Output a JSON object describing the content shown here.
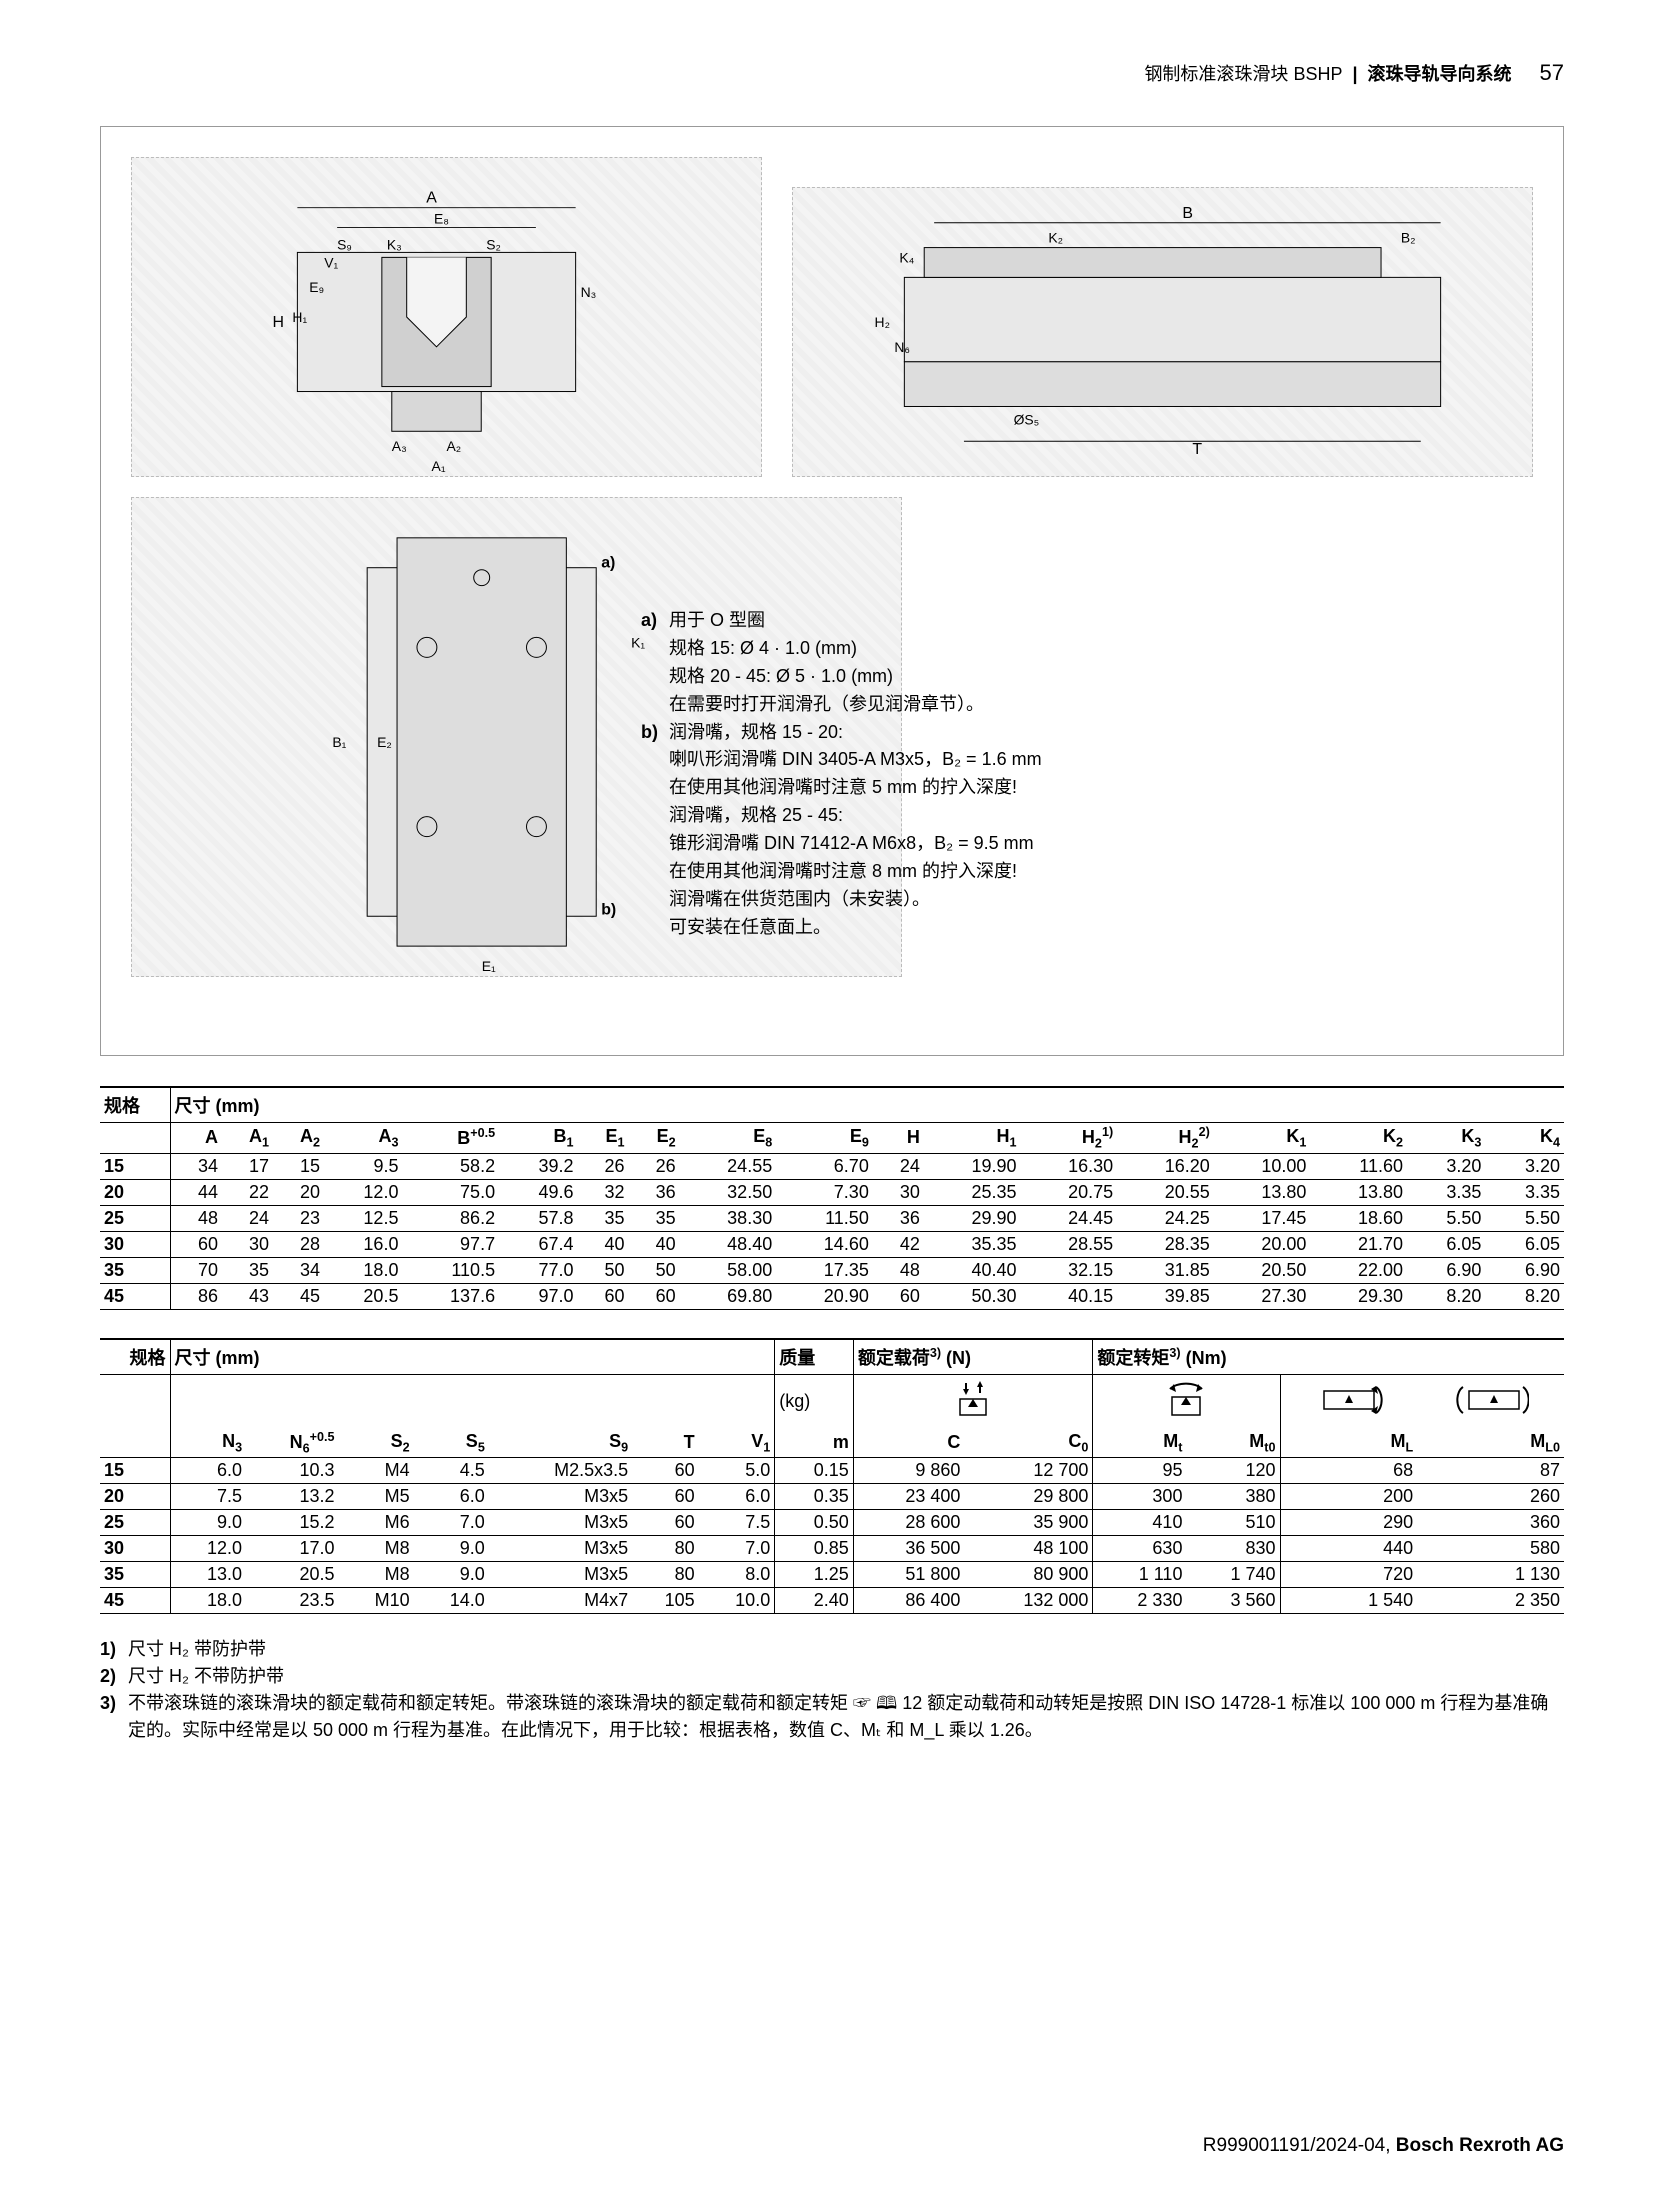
{
  "header": {
    "left": "钢制标准滚珠滑块 BSHP",
    "right": "滚珠导轨导向系统",
    "page": "57"
  },
  "diagramLabels": {
    "topLeft": [
      "A",
      "E8",
      "S9",
      "S2",
      "V1",
      "K3",
      "E9",
      "N3",
      "H",
      "H1",
      "A3",
      "A2",
      "A1"
    ],
    "topRight": [
      "B",
      "K2",
      "B2",
      "K4",
      "H2",
      "N6",
      "ØS5",
      "T"
    ],
    "botLeft": [
      "a)",
      "K1",
      "B1",
      "E2",
      "b)",
      "E1"
    ]
  },
  "notes": {
    "a_label": "a)",
    "a_lines": [
      "用于 O 型圈",
      "规格 15:  Ø 4 · 1.0 (mm)",
      "规格 20 - 45:  Ø 5 · 1.0 (mm)",
      "在需要时打开润滑孔（参见润滑章节）。"
    ],
    "b_label": "b)",
    "b_lines": [
      "润滑嘴，规格 15 - 20:",
      "喇叭形润滑嘴 DIN 3405-A M3x5，B₂ = 1.6 mm",
      "在使用其他润滑嘴时注意 5 mm 的拧入深度!",
      "润滑嘴，规格 25 - 45:",
      "锥形润滑嘴 DIN 71412-A M6x8，B₂ = 9.5 mm",
      "在使用其他润滑嘴时注意 8 mm 的拧入深度!",
      "润滑嘴在供货范围内（未安装）。",
      "可安装在任意面上。"
    ]
  },
  "table1": {
    "title_left": "规格",
    "title_right": "尺寸 (mm)",
    "columns": [
      "A",
      "A₁",
      "A₂",
      "A₃",
      "B⁺⁰·⁵",
      "B₁",
      "E₁",
      "E₂",
      "E₈",
      "E₉",
      "H",
      "H₁",
      "H₂¹⁾",
      "H₂²⁾",
      "K₁",
      "K₂",
      "K₃",
      "K₄"
    ],
    "rows": [
      [
        "15",
        "34",
        "17",
        "15",
        "9.5",
        "58.2",
        "39.2",
        "26",
        "26",
        "24.55",
        "6.70",
        "24",
        "19.90",
        "16.30",
        "16.20",
        "10.00",
        "11.60",
        "3.20",
        "3.20"
      ],
      [
        "20",
        "44",
        "22",
        "20",
        "12.0",
        "75.0",
        "49.6",
        "32",
        "36",
        "32.50",
        "7.30",
        "30",
        "25.35",
        "20.75",
        "20.55",
        "13.80",
        "13.80",
        "3.35",
        "3.35"
      ],
      [
        "25",
        "48",
        "24",
        "23",
        "12.5",
        "86.2",
        "57.8",
        "35",
        "35",
        "38.30",
        "11.50",
        "36",
        "29.90",
        "24.45",
        "24.25",
        "17.45",
        "18.60",
        "5.50",
        "5.50"
      ],
      [
        "30",
        "60",
        "30",
        "28",
        "16.0",
        "97.7",
        "67.4",
        "40",
        "40",
        "48.40",
        "14.60",
        "42",
        "35.35",
        "28.55",
        "28.35",
        "20.00",
        "21.70",
        "6.05",
        "6.05"
      ],
      [
        "35",
        "70",
        "35",
        "34",
        "18.0",
        "110.5",
        "77.0",
        "50",
        "50",
        "58.00",
        "17.35",
        "48",
        "40.40",
        "32.15",
        "31.85",
        "20.50",
        "22.00",
        "6.90",
        "6.90"
      ],
      [
        "45",
        "86",
        "43",
        "45",
        "20.5",
        "137.6",
        "97.0",
        "60",
        "60",
        "69.80",
        "20.90",
        "60",
        "50.30",
        "40.15",
        "39.85",
        "27.30",
        "29.30",
        "8.20",
        "8.20"
      ]
    ]
  },
  "table2": {
    "title_left": "规格",
    "groups": [
      "尺寸 (mm)",
      "质量",
      "额定载荷³⁾ (N)",
      "额定转矩³⁾ (Nm)"
    ],
    "group_sub": [
      "(kg)"
    ],
    "columns": [
      "N₃",
      "N₆⁺⁰·⁵",
      "S₂",
      "S₅",
      "S₉",
      "T",
      "V₁",
      "m",
      "C",
      "C₀",
      "Mₜ",
      "Mₜ₀",
      "M_L",
      "M_L₀"
    ],
    "rows": [
      [
        "15",
        "6.0",
        "10.3",
        "M4",
        "4.5",
        "M2.5x3.5",
        "60",
        "5.0",
        "0.15",
        "9 860",
        "12 700",
        "95",
        "120",
        "68",
        "87"
      ],
      [
        "20",
        "7.5",
        "13.2",
        "M5",
        "6.0",
        "M3x5",
        "60",
        "6.0",
        "0.35",
        "23 400",
        "29 800",
        "300",
        "380",
        "200",
        "260"
      ],
      [
        "25",
        "9.0",
        "15.2",
        "M6",
        "7.0",
        "M3x5",
        "60",
        "7.5",
        "0.50",
        "28 600",
        "35 900",
        "410",
        "510",
        "290",
        "360"
      ],
      [
        "30",
        "12.0",
        "17.0",
        "M8",
        "9.0",
        "M3x5",
        "80",
        "7.0",
        "0.85",
        "36 500",
        "48 100",
        "630",
        "830",
        "440",
        "580"
      ],
      [
        "35",
        "13.0",
        "20.5",
        "M8",
        "9.0",
        "M3x5",
        "80",
        "8.0",
        "1.25",
        "51 800",
        "80 900",
        "1 110",
        "1 740",
        "720",
        "1 130"
      ],
      [
        "45",
        "18.0",
        "23.5",
        "M10",
        "14.0",
        "M4x7",
        "105",
        "10.0",
        "2.40",
        "86 400",
        "132 000",
        "2 330",
        "3 560",
        "1 540",
        "2 350"
      ]
    ]
  },
  "footnotes": {
    "f1": "尺寸 H₂ 带防护带",
    "f2": "尺寸 H₂ 不带防护带",
    "f3": "不带滚珠链的滚珠滑块的额定载荷和额定转矩。带滚珠链的滚珠滑块的额定载荷和额定转矩 ☞ 🕮 12 额定动载荷和动转矩是按照 DIN ISO 14728-1 标准以 100 000 m 行程为基准确定的。实际中经常是以 50 000 m 行程为基准。在此情况下，用于比较：根据表格，数值 C、Mₜ 和 M_L 乘以 1.26。"
  },
  "footer": {
    "doc": "R999001191/2024-04,",
    "company": "Bosch Rexroth AG"
  }
}
